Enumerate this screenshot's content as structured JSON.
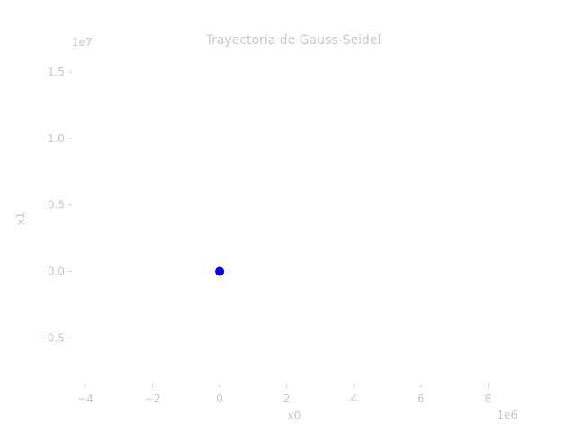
{
  "chart_data": {
    "type": "scatter",
    "title": "Trayectoria de Gauss-Seidel",
    "xlabel": "x0",
    "ylabel": "x1",
    "x_offset_text": "1e6",
    "y_offset_text": "1e7",
    "xlim": [
      -4.4,
      8.9
    ],
    "ylim": [
      -0.85,
      1.65
    ],
    "xticks": [
      {
        "value": -4,
        "label": "−4"
      },
      {
        "value": -2,
        "label": "−2"
      },
      {
        "value": 0,
        "label": "0"
      },
      {
        "value": 2,
        "label": "2"
      },
      {
        "value": 4,
        "label": "4"
      },
      {
        "value": 6,
        "label": "6"
      },
      {
        "value": 8,
        "label": "8"
      }
    ],
    "yticks": [
      {
        "value": -0.5,
        "label": "−0.5"
      },
      {
        "value": 0.0,
        "label": "0.0"
      },
      {
        "value": 0.5,
        "label": "0.5"
      },
      {
        "value": 1.0,
        "label": "1.0"
      },
      {
        "value": 1.5,
        "label": "1.5"
      }
    ],
    "grid": false,
    "series": [
      {
        "color": "#0000ee",
        "points": [
          {
            "x": 0,
            "y": 0
          }
        ]
      }
    ]
  }
}
